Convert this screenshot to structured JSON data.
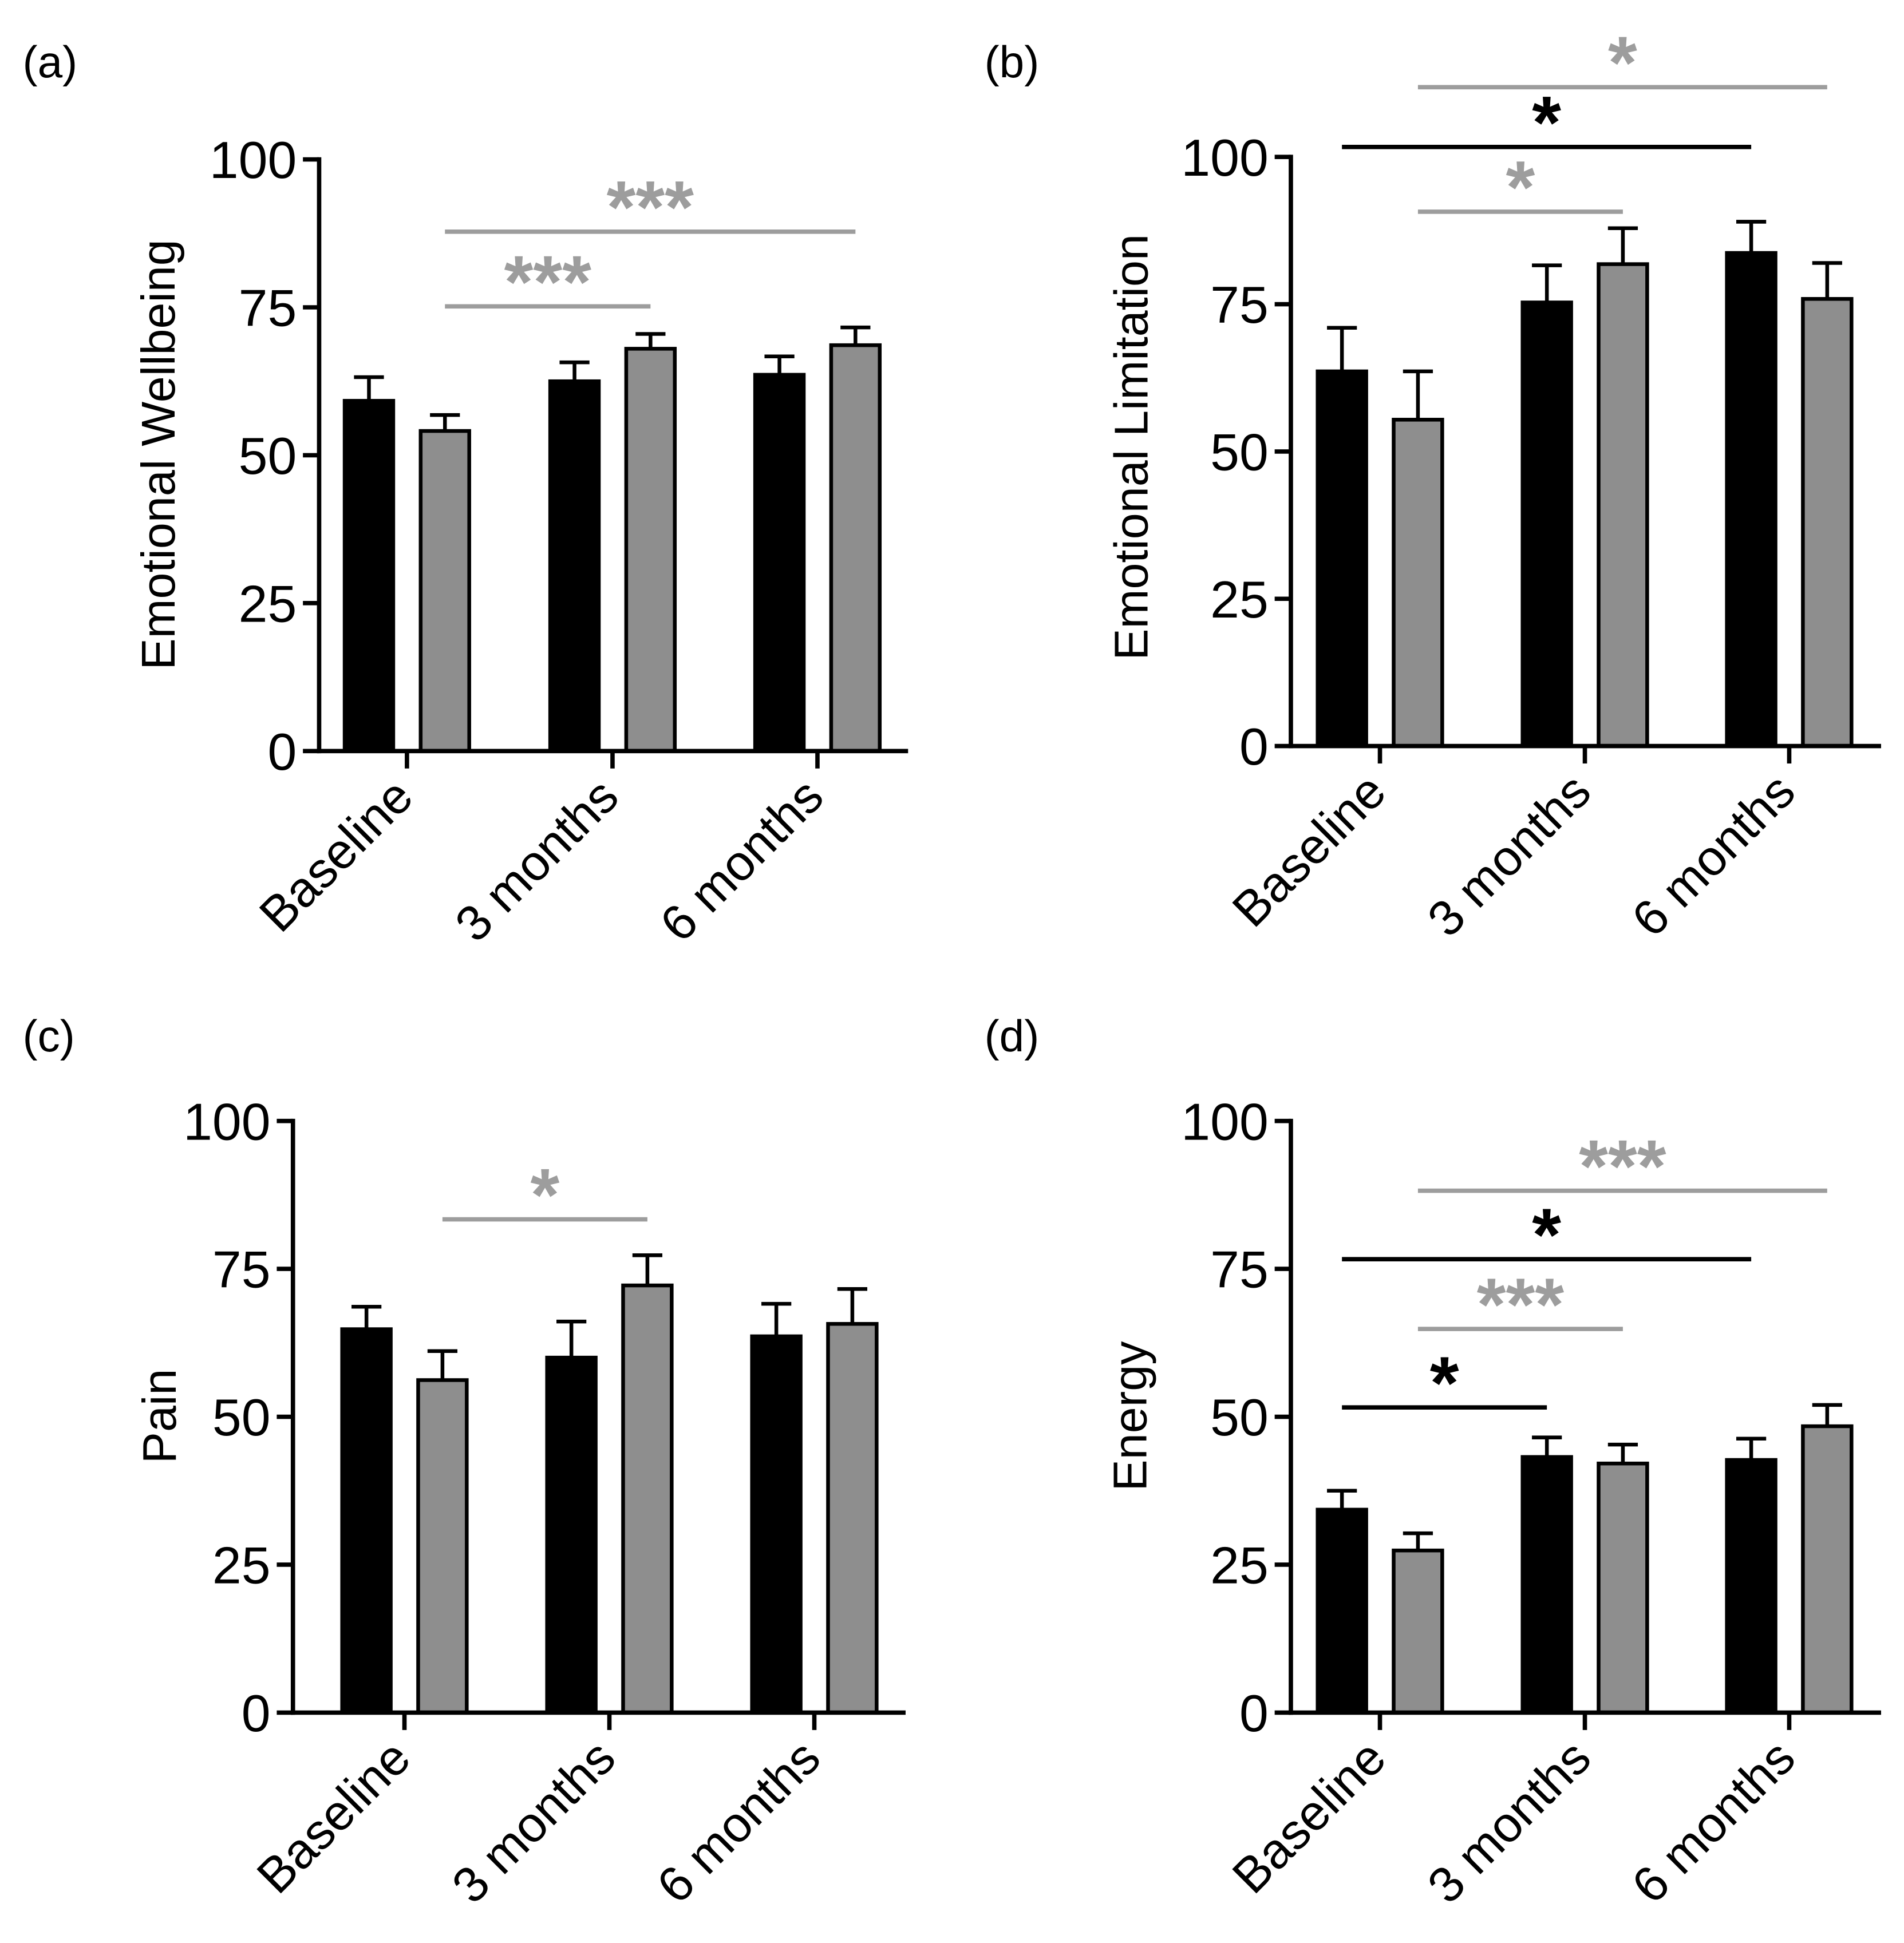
{
  "chart_data": [
    {
      "panel_label": "(a)",
      "type": "bar",
      "ylabel": "Emotional Wellbeing",
      "categories": [
        "Baseline",
        "3 months",
        "6 months"
      ],
      "ylim": [
        0,
        100
      ],
      "yticks": [
        0,
        25,
        50,
        75,
        100
      ],
      "series": [
        {
          "color": "#000000",
          "values": [
            59.2,
            62.5,
            63.6
          ],
          "errors": [
            4.0,
            3.2,
            3.1
          ]
        },
        {
          "color": "#8e8e8e",
          "values": [
            54.1,
            68.0,
            68.6
          ],
          "errors": [
            2.7,
            2.5,
            3.0
          ]
        }
      ],
      "significance": [
        {
          "label": "***",
          "color": "#9d9d9d",
          "series": 1,
          "from": 0,
          "to": 1
        },
        {
          "label": "***",
          "color": "#9d9d9d",
          "series": 1,
          "from": 0,
          "to": 2
        }
      ]
    },
    {
      "panel_label": "(b)",
      "type": "bar",
      "ylabel": "Emotional Limitation",
      "categories": [
        "Baseline",
        "3 months",
        "6 months"
      ],
      "ylim": [
        0,
        100
      ],
      "yticks": [
        0,
        25,
        50,
        75,
        100
      ],
      "series": [
        {
          "color": "#000000",
          "values": [
            63.6,
            75.3,
            83.7
          ],
          "errors": [
            7.4,
            6.3,
            5.3
          ]
        },
        {
          "color": "#8e8e8e",
          "values": [
            55.4,
            81.8,
            75.9
          ],
          "errors": [
            8.2,
            6.1,
            6.1
          ]
        }
      ],
      "significance": [
        {
          "label": "*",
          "color": "#9d9d9d",
          "series": 1,
          "from": 0,
          "to": 1
        },
        {
          "label": "*",
          "color": "#000000",
          "series": 0,
          "from": 0,
          "to": 2
        },
        {
          "label": "*",
          "color": "#9d9d9d",
          "series": 1,
          "from": 0,
          "to": 2
        }
      ]
    },
    {
      "panel_label": "(c)",
      "type": "bar",
      "ylabel": "Pain",
      "categories": [
        "Baseline",
        "3 months",
        "6 months"
      ],
      "ylim": [
        0,
        100
      ],
      "yticks": [
        0,
        25,
        50,
        75,
        100
      ],
      "series": [
        {
          "color": "#000000",
          "values": [
            64.8,
            60.0,
            63.6
          ],
          "errors": [
            3.8,
            6.1,
            5.5
          ]
        },
        {
          "color": "#8e8e8e",
          "values": [
            56.2,
            72.2,
            65.7
          ],
          "errors": [
            4.9,
            5.1,
            5.9
          ]
        }
      ],
      "significance": [
        {
          "label": "*",
          "color": "#9d9d9d",
          "series": 1,
          "from": 0,
          "to": 1
        }
      ]
    },
    {
      "panel_label": "(d)",
      "type": "bar",
      "ylabel": "Energy",
      "categories": [
        "Baseline",
        "3 months",
        "6 months"
      ],
      "ylim": [
        0,
        100
      ],
      "yticks": [
        0,
        25,
        50,
        75,
        100
      ],
      "series": [
        {
          "color": "#000000",
          "values": [
            34.3,
            43.2,
            42.7
          ],
          "errors": [
            3.2,
            3.3,
            3.6
          ]
        },
        {
          "color": "#8e8e8e",
          "values": [
            27.4,
            42.1,
            48.4
          ],
          "errors": [
            2.9,
            3.2,
            3.6
          ]
        }
      ],
      "significance": [
        {
          "label": "*",
          "color": "#000000",
          "series": 0,
          "from": 0,
          "to": 1
        },
        {
          "label": "***",
          "color": "#9d9d9d",
          "series": 1,
          "from": 0,
          "to": 1
        },
        {
          "label": "*",
          "color": "#000000",
          "series": 0,
          "from": 0,
          "to": 2
        },
        {
          "label": "***",
          "color": "#9d9d9d",
          "series": 1,
          "from": 0,
          "to": 2
        }
      ]
    }
  ]
}
